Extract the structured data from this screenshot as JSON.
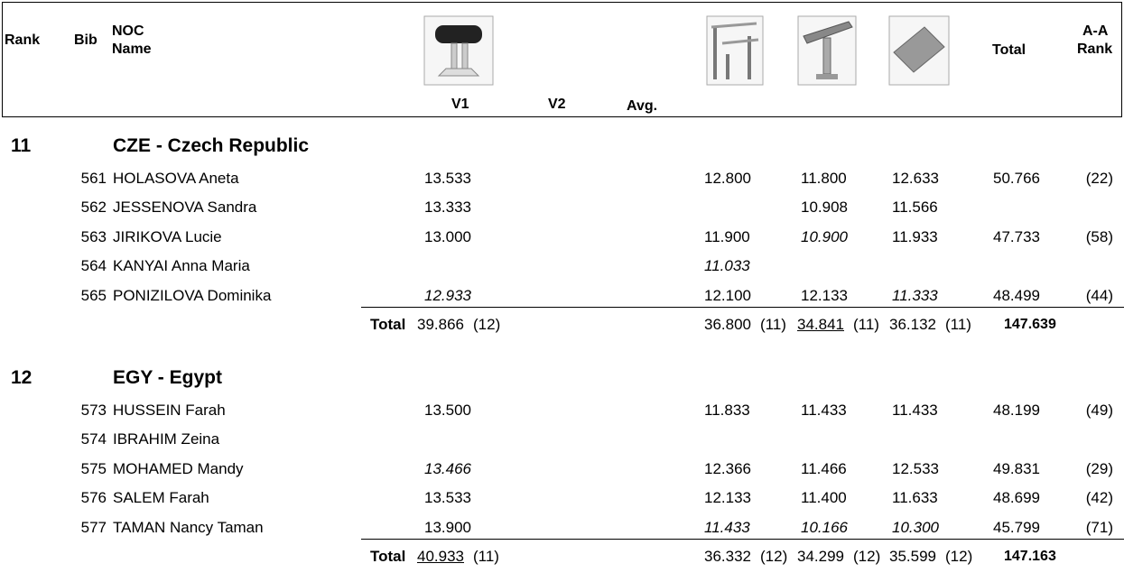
{
  "header": {
    "rank": "Rank",
    "bib": "Bib",
    "noc": "NOC",
    "name": "Name",
    "v1": "V1",
    "v2": "V2",
    "avg": "Avg.",
    "total": "Total",
    "aa_rank": [
      "A-A",
      "Rank"
    ]
  },
  "teams": [
    {
      "rank": "11",
      "noc": "CZE - Czech Republic",
      "total_label": "Total",
      "athletes": [
        {
          "bib": "561",
          "name": "HOLASOVA Aneta",
          "scores": [
            "13.533",
            "12.800",
            "11.800",
            "12.633"
          ],
          "total": "50.766",
          "aa_rank": "(22)"
        },
        {
          "bib": "562",
          "name": "JESSENOVA Sandra",
          "scores": [
            "13.333",
            null,
            "10.908",
            "11.566"
          ],
          "total": null,
          "aa_rank": null
        },
        {
          "bib": "563",
          "name": "JIRIKOVA Lucie",
          "scores": [
            "13.000",
            "11.900",
            {
              "text": "10.900",
              "italic": true
            },
            "11.933"
          ],
          "total": "47.733",
          "aa_rank": "(58)"
        },
        {
          "bib": "564",
          "name": "KANYAI Anna Maria",
          "scores": [
            null,
            {
              "text": "11.033",
              "italic": true
            },
            null,
            null
          ],
          "total": null,
          "aa_rank": null
        },
        {
          "bib": "565",
          "name": "PONIZILOVA Dominika",
          "scores": [
            {
              "text": "12.933",
              "italic": true
            },
            "12.100",
            "12.133",
            {
              "text": "11.333",
              "italic": true
            }
          ],
          "total": "48.499",
          "aa_rank": "(44)"
        }
      ],
      "totals": [
        {
          "score": "39.866",
          "rank": "(12)",
          "underline": false
        },
        {
          "score": "36.800",
          "rank": "(11)",
          "underline": false
        },
        {
          "score": "34.841",
          "rank": "(11)",
          "underline": true
        },
        {
          "score": "36.132",
          "rank": "(11)",
          "underline": false
        }
      ],
      "team_total": "147.639"
    },
    {
      "rank": "12",
      "noc": "EGY - Egypt",
      "total_label": "Total",
      "athletes": [
        {
          "bib": "573",
          "name": "HUSSEIN Farah",
          "scores": [
            "13.500",
            "11.833",
            "11.433",
            "11.433"
          ],
          "total": "48.199",
          "aa_rank": "(49)"
        },
        {
          "bib": "574",
          "name": "IBRAHIM Zeina",
          "scores": [
            null,
            null,
            null,
            null
          ],
          "total": null,
          "aa_rank": null
        },
        {
          "bib": "575",
          "name": "MOHAMED Mandy",
          "scores": [
            {
              "text": "13.466",
              "italic": true
            },
            "12.366",
            "11.466",
            "12.533"
          ],
          "total": "49.831",
          "aa_rank": "(29)"
        },
        {
          "bib": "576",
          "name": "SALEM Farah",
          "scores": [
            "13.533",
            "12.133",
            "11.400",
            "11.633"
          ],
          "total": "48.699",
          "aa_rank": "(42)"
        },
        {
          "bib": "577",
          "name": "TAMAN Nancy Taman",
          "scores": [
            "13.900",
            {
              "text": "11.433",
              "italic": true
            },
            {
              "text": "10.166",
              "italic": true
            },
            {
              "text": "10.300",
              "italic": true
            }
          ],
          "total": "45.799",
          "aa_rank": "(71)"
        }
      ],
      "totals": [
        {
          "score": "40.933",
          "rank": "(11)",
          "underline": true
        },
        {
          "score": "36.332",
          "rank": "(12)",
          "underline": false
        },
        {
          "score": "34.299",
          "rank": "(12)",
          "underline": false
        },
        {
          "score": "35.599",
          "rank": "(12)",
          "underline": false
        }
      ],
      "team_total": "147.163"
    }
  ]
}
